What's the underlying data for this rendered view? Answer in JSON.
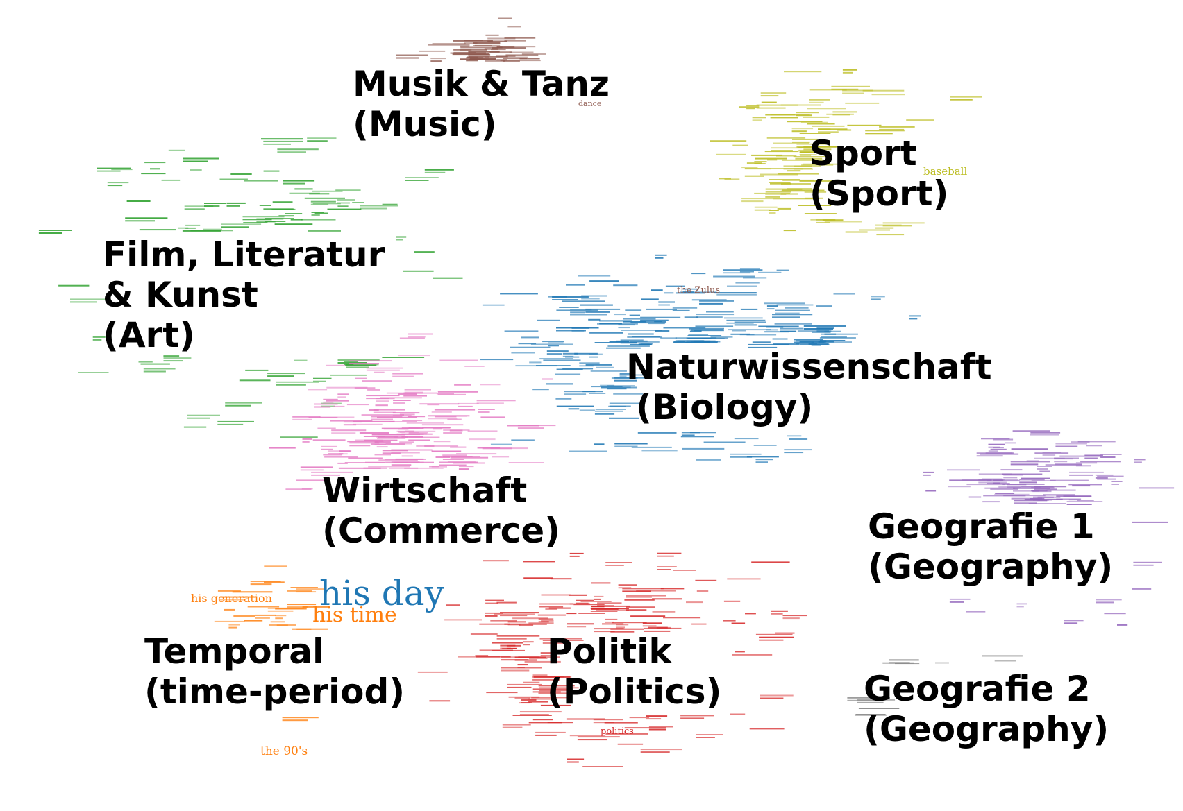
{
  "colors": {
    "music": "#8c564b",
    "art": "#2ca02c",
    "sport": "#bcbd22",
    "biology": "#1f77b4",
    "commerce": "#e377c2",
    "geography1": "#9467bd",
    "geography2": "#7f7f7f",
    "politics": "#d62728",
    "temporal": "#ff7f0e"
  },
  "clusters": {
    "music": {
      "line1": "Musik & Tanz",
      "line2": "(Music)"
    },
    "sport": {
      "line1": "Sport",
      "line2": "(Sport)"
    },
    "art": {
      "line1": "Film, Literatur",
      "line2": "& Kunst",
      "line3": "(Art)"
    },
    "biology": {
      "line1": "Naturwissenschaft",
      "line2": "(Biology)"
    },
    "commerce": {
      "line1": "Wirtschaft",
      "line2": "(Commerce)"
    },
    "geography1": {
      "line1": "Geografie 1",
      "line2": "(Geography)"
    },
    "temporal": {
      "line1": "Temporal",
      "line2": "(time-period)"
    },
    "politics": {
      "line1": "Politik",
      "line2": "(Politics)"
    },
    "geography2": {
      "line1": "Geografie 2",
      "line2": "(Geography)"
    }
  },
  "phrases": {
    "his_day": "his day",
    "his_time": "his time",
    "his_generation": "his generation",
    "the_90s": "the 90's",
    "baseball": "baseball",
    "the_zulus": "the Zulus",
    "dance": "dance",
    "politics": "politics"
  }
}
